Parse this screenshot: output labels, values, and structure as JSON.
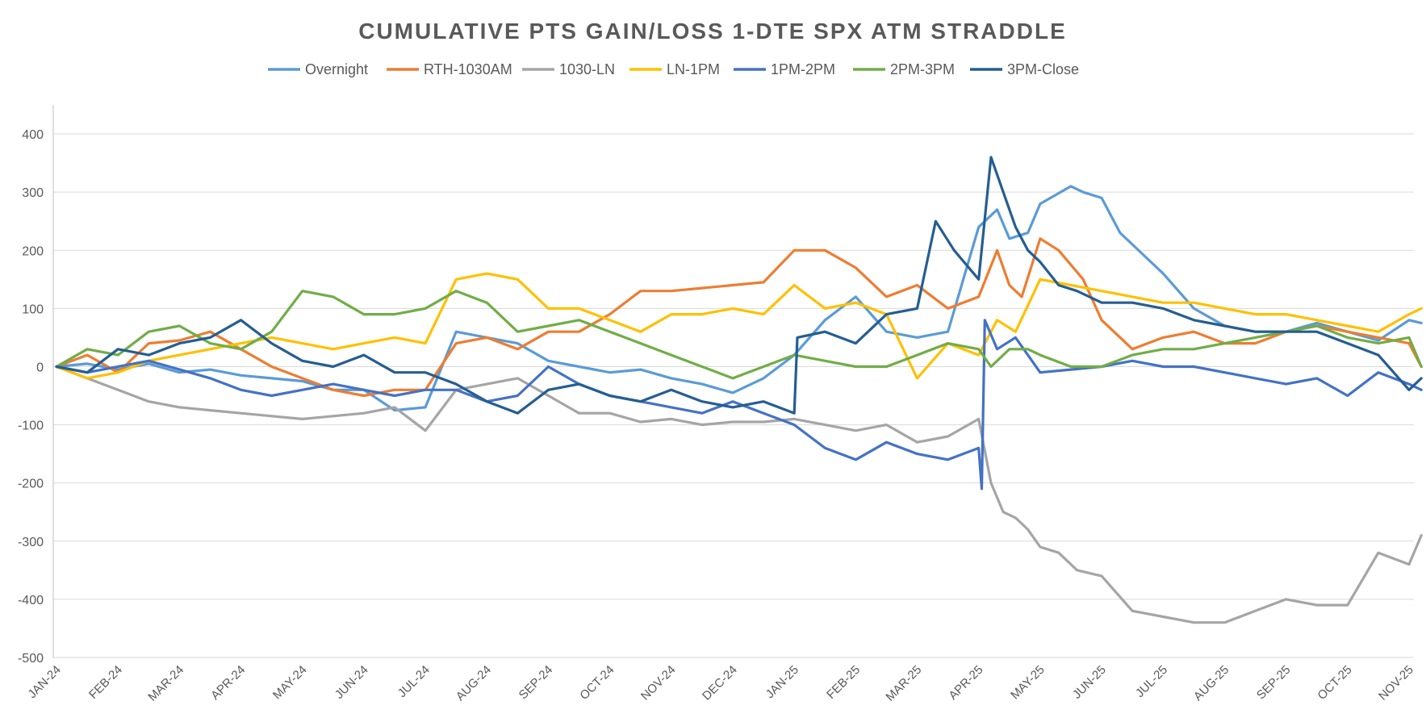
{
  "chart_data": {
    "type": "line",
    "title": "CUMULATIVE PTS GAIN/LOSS 1-DTE SPX ATM STRADDLE",
    "xlabel": "",
    "ylabel": "",
    "ylim": [
      -500,
      450
    ],
    "yticks": [
      400,
      300,
      200,
      100,
      0,
      -100,
      -200,
      -300,
      -400,
      -500
    ],
    "grid": true,
    "legend": "top",
    "categories": [
      "JAN-24",
      "FEB-24",
      "MAR-24",
      "APR-24",
      "MAY-24",
      "JUN-24",
      "JUL-24",
      "AUG-24",
      "SEP-24",
      "OCT-24",
      "NOV-24",
      "DEC-24",
      "JAN-25",
      "FEB-25",
      "MAR-25",
      "APR-25",
      "MAY-25",
      "JUN-25",
      "JUL-25",
      "AUG-25",
      "SEP-25",
      "OCT-25",
      "NOV-25"
    ],
    "series": [
      {
        "name": "Overnight",
        "color": "#5b9bd5",
        "x": [
          0,
          0.5,
          1,
          1.5,
          2,
          2.5,
          3,
          3.5,
          4,
          4.5,
          5,
          5.5,
          6,
          6.5,
          7,
          7.5,
          8,
          8.5,
          9,
          9.5,
          10,
          10.5,
          11,
          11.5,
          12,
          12.5,
          13,
          13.5,
          14,
          14.5,
          15,
          15.3,
          15.5,
          15.8,
          16,
          16.5,
          16.7,
          17,
          17.3,
          17.7,
          18,
          18.5,
          19,
          19.5,
          20,
          20.5,
          21,
          21.5,
          22,
          22.2
        ],
        "values": [
          0,
          5,
          -5,
          5,
          -10,
          -5,
          -15,
          -20,
          -25,
          -40,
          -40,
          -75,
          -70,
          60,
          50,
          40,
          10,
          0,
          -10,
          -5,
          -20,
          -30,
          -45,
          -20,
          20,
          80,
          120,
          60,
          50,
          60,
          240,
          270,
          220,
          230,
          280,
          310,
          300,
          290,
          230,
          190,
          160,
          100,
          70,
          60,
          60,
          75,
          60,
          45,
          80,
          75
        ]
      },
      {
        "name": "RTH-1030AM",
        "color": "#ed7d31",
        "x": [
          0,
          0.5,
          1,
          1.5,
          2,
          2.5,
          3,
          3.5,
          4,
          4.5,
          5,
          5.5,
          6,
          6.5,
          7,
          7.5,
          8,
          8.5,
          9,
          9.5,
          10,
          10.5,
          11,
          11.5,
          12,
          12.5,
          13,
          13.5,
          14,
          14.5,
          15,
          15.3,
          15.5,
          15.7,
          16,
          16.3,
          16.7,
          17,
          17.5,
          18,
          18.5,
          19,
          19.5,
          20,
          20.5,
          21,
          21.5,
          22,
          22.2
        ],
        "values": [
          0,
          20,
          -10,
          40,
          45,
          60,
          30,
          0,
          -20,
          -40,
          -50,
          -40,
          -40,
          40,
          50,
          30,
          60,
          60,
          90,
          130,
          130,
          135,
          140,
          145,
          200,
          200,
          170,
          120,
          140,
          100,
          120,
          200,
          140,
          120,
          220,
          200,
          150,
          80,
          30,
          50,
          60,
          40,
          40,
          60,
          70,
          60,
          50,
          40,
          0
        ]
      },
      {
        "name": "1030-LN",
        "color": "#a5a5a5",
        "x": [
          0,
          0.5,
          1,
          1.5,
          2,
          2.5,
          3,
          3.5,
          4,
          4.5,
          5,
          5.5,
          6,
          6.5,
          7,
          7.5,
          8,
          8.5,
          9,
          9.5,
          10,
          10.5,
          11,
          11.5,
          12,
          12.5,
          13,
          13.5,
          14,
          14.5,
          15,
          15.2,
          15.4,
          15.6,
          15.8,
          16,
          16.3,
          16.6,
          17,
          17.5,
          18,
          18.5,
          19,
          19.5,
          20,
          20.5,
          21,
          21.5,
          22,
          22.2
        ],
        "values": [
          0,
          -20,
          -40,
          -60,
          -70,
          -75,
          -80,
          -85,
          -90,
          -85,
          -80,
          -70,
          -110,
          -40,
          -30,
          -20,
          -50,
          -80,
          -80,
          -95,
          -90,
          -100,
          -95,
          -95,
          -90,
          -100,
          -110,
          -100,
          -130,
          -120,
          -90,
          -200,
          -250,
          -260,
          -280,
          -310,
          -320,
          -350,
          -360,
          -420,
          -430,
          -440,
          -440,
          -420,
          -400,
          -410,
          -410,
          -320,
          -340,
          -290
        ]
      },
      {
        "name": "LN-1PM",
        "color": "#ffc000",
        "x": [
          0,
          0.5,
          1,
          1.5,
          2,
          2.5,
          3,
          3.5,
          4,
          4.5,
          5,
          5.5,
          6,
          6.5,
          7,
          7.5,
          8,
          8.5,
          9,
          9.5,
          10,
          10.5,
          11,
          11.5,
          12,
          12.5,
          13,
          13.5,
          14,
          14.5,
          15,
          15.3,
          15.6,
          16,
          16.5,
          17,
          17.5,
          18,
          18.5,
          19,
          19.5,
          20,
          20.5,
          21,
          21.5,
          22,
          22.2
        ],
        "values": [
          0,
          -20,
          -10,
          10,
          20,
          30,
          40,
          50,
          40,
          30,
          40,
          50,
          40,
          150,
          160,
          150,
          100,
          100,
          80,
          60,
          90,
          90,
          100,
          90,
          140,
          100,
          110,
          90,
          -20,
          40,
          20,
          80,
          60,
          150,
          140,
          130,
          120,
          110,
          110,
          100,
          90,
          90,
          80,
          70,
          60,
          90,
          100
        ]
      },
      {
        "name": "1PM-2PM",
        "color": "#4472c4",
        "x": [
          0,
          0.5,
          1,
          1.5,
          2,
          2.5,
          3,
          3.5,
          4,
          4.5,
          5,
          5.5,
          6,
          6.5,
          7,
          7.5,
          8,
          8.5,
          9,
          9.5,
          10,
          10.5,
          11,
          11.5,
          12,
          12.5,
          13,
          13.5,
          14,
          14.5,
          15,
          15.05,
          15.1,
          15.3,
          15.6,
          16,
          16.5,
          17,
          17.5,
          18,
          18.5,
          19,
          19.5,
          20,
          20.5,
          21,
          21.5,
          22,
          22.2
        ],
        "values": [
          0,
          -10,
          0,
          10,
          -5,
          -20,
          -40,
          -50,
          -40,
          -30,
          -40,
          -50,
          -40,
          -40,
          -60,
          -50,
          0,
          -30,
          -50,
          -60,
          -70,
          -80,
          -60,
          -80,
          -100,
          -140,
          -160,
          -130,
          -150,
          -160,
          -140,
          -210,
          80,
          30,
          50,
          -10,
          -5,
          0,
          10,
          0,
          0,
          -10,
          -20,
          -30,
          -20,
          -50,
          -10,
          -30,
          -40
        ]
      },
      {
        "name": "2PM-3PM",
        "color": "#70ad47",
        "x": [
          0,
          0.5,
          1,
          1.5,
          2,
          2.5,
          3,
          3.5,
          4,
          4.5,
          5,
          5.5,
          6,
          6.5,
          7,
          7.5,
          8,
          8.5,
          9,
          9.5,
          10,
          10.5,
          11,
          11.5,
          12,
          12.5,
          13,
          13.5,
          14,
          14.5,
          15,
          15.2,
          15.5,
          15.8,
          16,
          16.5,
          17,
          17.5,
          18,
          18.5,
          19,
          19.5,
          20,
          20.5,
          21,
          21.5,
          22,
          22.2
        ],
        "values": [
          0,
          30,
          20,
          60,
          70,
          40,
          30,
          60,
          130,
          120,
          90,
          90,
          100,
          130,
          110,
          60,
          70,
          80,
          60,
          40,
          20,
          0,
          -20,
          0,
          20,
          10,
          0,
          0,
          20,
          40,
          30,
          0,
          30,
          30,
          20,
          0,
          0,
          20,
          30,
          30,
          40,
          50,
          60,
          70,
          50,
          40,
          50,
          0
        ]
      },
      {
        "name": "3PM-Close",
        "color": "#255e91",
        "x": [
          0,
          0.5,
          1,
          1.5,
          2,
          2.5,
          3,
          3.5,
          4,
          4.5,
          5,
          5.5,
          6,
          6.5,
          7,
          7.5,
          8,
          8.5,
          9,
          9.5,
          10,
          10.5,
          11,
          11.5,
          12,
          12.05,
          12.5,
          13,
          13.5,
          14,
          14.3,
          14.6,
          15,
          15.2,
          15.4,
          15.6,
          15.8,
          16,
          16.3,
          16.6,
          17,
          17.5,
          18,
          18.5,
          19,
          19.5,
          20,
          20.5,
          21,
          21.5,
          22,
          22.2
        ],
        "values": [
          0,
          -10,
          30,
          20,
          40,
          50,
          80,
          40,
          10,
          0,
          20,
          -10,
          -10,
          -30,
          -60,
          -80,
          -40,
          -30,
          -50,
          -60,
          -40,
          -60,
          -70,
          -60,
          -80,
          50,
          60,
          40,
          90,
          100,
          250,
          200,
          150,
          360,
          300,
          240,
          200,
          180,
          140,
          130,
          110,
          110,
          100,
          80,
          70,
          60,
          60,
          60,
          40,
          20,
          -40,
          -20
        ]
      }
    ]
  }
}
